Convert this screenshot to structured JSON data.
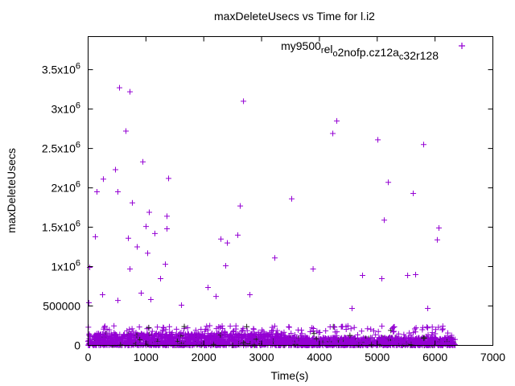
{
  "chart_data": {
    "type": "scatter",
    "title": "maxDeleteUsecs vs Time for l.i2",
    "xlabel": "Time(s)",
    "ylabel": "maxDeleteUsecs",
    "xlim": [
      0,
      7000
    ],
    "ylim": [
      0,
      3920000
    ],
    "x_ticks": [
      0,
      1000,
      2000,
      3000,
      4000,
      5000,
      6000,
      7000
    ],
    "x_tick_labels": [
      "0",
      "1000",
      "2000",
      "3000",
      "4000",
      "5000",
      "6000",
      "7000"
    ],
    "y_ticks": [
      0,
      500000,
      1000000,
      1500000,
      2000000,
      2500000,
      3000000,
      3500000
    ],
    "y_tick_labels": [
      {
        "main": "0",
        "sup": ""
      },
      {
        "main": "500000",
        "sup": ""
      },
      {
        "main": "1x10",
        "sup": "6"
      },
      {
        "main": "1.5x10",
        "sup": "6"
      },
      {
        "main": "2x10",
        "sup": "6"
      },
      {
        "main": "2.5x10",
        "sup": "6"
      },
      {
        "main": "3x10",
        "sup": "6"
      },
      {
        "main": "3.5x10",
        "sup": "6"
      }
    ],
    "grid": false,
    "legend_position": "top-right",
    "series": [
      {
        "name": "my9500_rel_o2nofp.cz12a_c32r128",
        "legend_parts": [
          {
            "t": "my9500",
            "sub": false
          },
          {
            "t": "r",
            "sub": true
          },
          {
            "t": "el",
            "sub": false
          },
          {
            "t": "o",
            "sub": true
          },
          {
            "t": "2nofp.cz12a",
            "sub": false
          },
          {
            "t": "c",
            "sub": true
          },
          {
            "t": "32r128",
            "sub": false
          }
        ],
        "color": "#9400d3",
        "marker": "plus",
        "outliers": [
          [
            14,
            541000
          ],
          [
            28,
            990000
          ],
          [
            125,
            1380000
          ],
          [
            153,
            1950000
          ],
          [
            264,
            2110000
          ],
          [
            250,
            643000
          ],
          [
            473,
            2230000
          ],
          [
            515,
            1950000
          ],
          [
            515,
            571000
          ],
          [
            543,
            3270000
          ],
          [
            654,
            2720000
          ],
          [
            724,
            3220000
          ],
          [
            696,
            1360000
          ],
          [
            724,
            970000
          ],
          [
            765,
            1810000
          ],
          [
            849,
            1250000
          ],
          [
            919,
            663000
          ],
          [
            947,
            2330000
          ],
          [
            1002,
            1510000
          ],
          [
            1030,
            1170000
          ],
          [
            1058,
            1690000
          ],
          [
            1085,
            582000
          ],
          [
            1155,
            1420000
          ],
          [
            1253,
            847000
          ],
          [
            1336,
            1030000
          ],
          [
            1364,
            1480000
          ],
          [
            1364,
            1640000
          ],
          [
            1392,
            2120000
          ],
          [
            1615,
            510000
          ],
          [
            2074,
            735000
          ],
          [
            2213,
            622000
          ],
          [
            2297,
            1350000
          ],
          [
            2408,
            1300000
          ],
          [
            2380,
            1010000
          ],
          [
            2589,
            1400000
          ],
          [
            2631,
            1770000
          ],
          [
            2687,
            3100000
          ],
          [
            2798,
            643000
          ],
          [
            3229,
            1110000
          ],
          [
            3521,
            1860000
          ],
          [
            3891,
            970000
          ],
          [
            4232,
            2690000
          ],
          [
            4301,
            2850000
          ],
          [
            4565,
            469000
          ],
          [
            4746,
            888000
          ],
          [
            5011,
            2610000
          ],
          [
            5080,
            847000
          ],
          [
            5122,
            1590000
          ],
          [
            5192,
            2070000
          ],
          [
            5526,
            888000
          ],
          [
            5623,
            1930000
          ],
          [
            5664,
            898000
          ],
          [
            5803,
            2550000
          ],
          [
            5874,
            469000
          ],
          [
            6039,
            1340000
          ],
          [
            6067,
            1490000
          ]
        ],
        "dense_cluster": {
          "x_range": [
            0,
            6350
          ],
          "y_range": [
            0,
            250000
          ],
          "count": 2600
        }
      }
    ]
  }
}
